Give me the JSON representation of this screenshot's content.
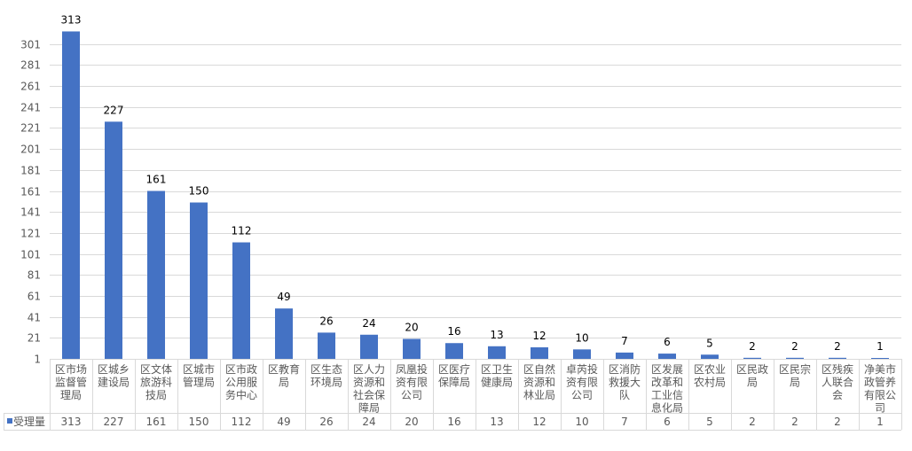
{
  "chart_data": {
    "type": "bar",
    "categories": [
      "区市场监督管理局",
      "区城乡建设局",
      "区文体旅游科技局",
      "区城市管理局",
      "区市政公用服务中心",
      "区教育局",
      "区生态环境局",
      "区人力资源和社会保障局",
      "凤凰投资有限公司",
      "区医疗保障局",
      "区卫生健康局",
      "区自然资源和林业局",
      "卓芮投资有限公司",
      "区消防救援大队",
      "区发展改革和工业信息化局",
      "区农业农村局",
      "区民政局",
      "区民宗局",
      "区残疾人联合会",
      "净美市政管养有限公司"
    ],
    "category_lines": [
      [
        "区市场",
        "监督管",
        "理局"
      ],
      [
        "区城乡",
        "建设局"
      ],
      [
        "区文体",
        "旅游科",
        "技局"
      ],
      [
        "区城市",
        "管理局"
      ],
      [
        "区市政",
        "公用服",
        "务中心"
      ],
      [
        "区教育",
        "局"
      ],
      [
        "区生态",
        "环境局"
      ],
      [
        "区人力",
        "资源和",
        "社会保",
        "障局"
      ],
      [
        "凤凰投",
        "资有限",
        "公司"
      ],
      [
        "区医疗",
        "保障局"
      ],
      [
        "区卫生",
        "健康局"
      ],
      [
        "区自然",
        "资源和",
        "林业局"
      ],
      [
        "卓芮投",
        "资有限",
        "公司"
      ],
      [
        "区消防",
        "救援大",
        "队"
      ],
      [
        "区发展",
        "改革和",
        "工业信",
        "息化局"
      ],
      [
        "区农业",
        "农村局"
      ],
      [
        "区民政",
        "局"
      ],
      [
        "区民宗",
        "局"
      ],
      [
        "区残疾",
        "人联合",
        "会"
      ],
      [
        "净美市",
        "政管养",
        "有限公",
        "司"
      ]
    ],
    "series": [
      {
        "name": "受理量",
        "values": [
          313,
          227,
          161,
          150,
          112,
          49,
          26,
          24,
          20,
          16,
          13,
          12,
          10,
          7,
          6,
          5,
          2,
          2,
          2,
          1
        ]
      }
    ],
    "value_labels": [
      "313",
      "227",
      "161",
      "150",
      "112",
      "49",
      "26",
      "24",
      "20",
      "16",
      "13",
      "12",
      "10",
      "7",
      "6",
      "5",
      "2",
      "2",
      "2",
      "1"
    ],
    "y_ticks": [
      1,
      21,
      41,
      61,
      81,
      101,
      121,
      141,
      161,
      181,
      201,
      221,
      241,
      261,
      281,
      301
    ],
    "ylim": [
      1,
      321
    ],
    "data_table": true,
    "legend_position": "bottom-left",
    "grid": true,
    "colors": {
      "bar": "#4472c4",
      "grid": "#d9d9d9",
      "text": "#595959"
    }
  }
}
